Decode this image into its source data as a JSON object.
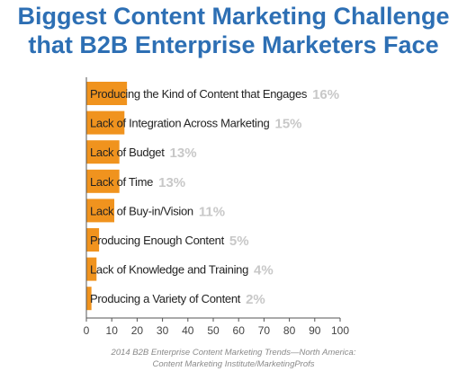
{
  "title": {
    "line1": "Biggest Content Marketing Challenge",
    "line2": "that B2B Enterprise Marketers Face"
  },
  "source": {
    "line1": "2014 B2B Enterprise Content Marketing Trends—North America:",
    "line2": "Content Marketing Institute/MarketingProfs"
  },
  "colors": {
    "bar": "#f0931e",
    "title": "#2d6fb4",
    "label": "#222222",
    "value": "#c8c8c8",
    "axis": "#555555"
  },
  "chart_data": {
    "type": "bar",
    "orientation": "horizontal",
    "title": "Biggest Content Marketing Challenge that B2B Enterprise Marketers Face",
    "xlabel": "",
    "ylabel": "",
    "xlim": [
      0,
      100
    ],
    "xticks": [
      0,
      10,
      20,
      30,
      40,
      50,
      60,
      70,
      80,
      90,
      100
    ],
    "grid": false,
    "categories": [
      "Producing the Kind of Content that Engages",
      "Lack of Integration Across Marketing",
      "Lack of Budget",
      "Lack of Time",
      "Lack of Buy-in/Vision",
      "Producing Enough Content",
      "Lack of Knowledge and Training",
      "Producing a Variety of Content"
    ],
    "values": [
      16,
      15,
      13,
      13,
      11,
      5,
      4,
      2
    ],
    "value_labels": [
      "16%",
      "15%",
      "13%",
      "13%",
      "11%",
      "5%",
      "4%",
      "2%"
    ]
  }
}
